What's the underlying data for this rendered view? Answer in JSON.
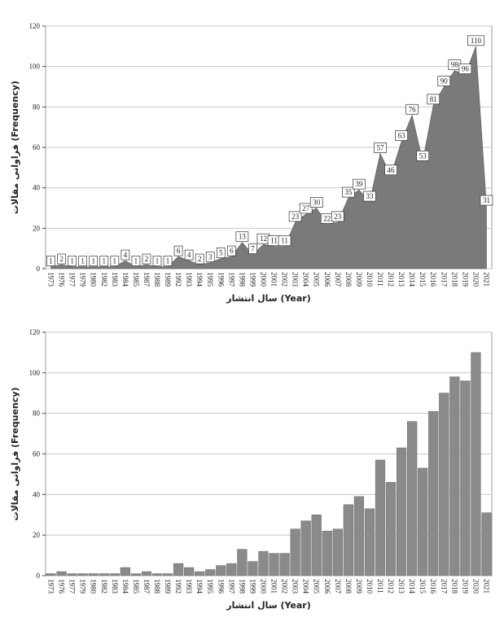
{
  "chart_data": [
    {
      "type": "area",
      "x_label": "سال انتشار (Year)",
      "y_label": "فراوانی مقالات (Frequency)",
      "categories": [
        "1973",
        "1976",
        "1977",
        "1979",
        "1980",
        "1982",
        "1983",
        "1984",
        "1985",
        "1987",
        "1988",
        "1989",
        "1992",
        "1993",
        "1994",
        "1995",
        "1996",
        "1997",
        "1998",
        "1999",
        "2000",
        "2001",
        "2002",
        "2003",
        "2004",
        "2005",
        "2006",
        "2007",
        "2008",
        "2009",
        "2010",
        "2011",
        "2012",
        "2013",
        "2014",
        "2015",
        "2016",
        "2017",
        "2018",
        "2019",
        "2020",
        "2021"
      ],
      "values": [
        1,
        2,
        1,
        1,
        1,
        1,
        1,
        4,
        1,
        2,
        1,
        1,
        6,
        4,
        2,
        3,
        5,
        6,
        13,
        7,
        12,
        11,
        11,
        23,
        27,
        30,
        22,
        23,
        35,
        39,
        33,
        57,
        46,
        63,
        76,
        53,
        81,
        90,
        98,
        96,
        110,
        31
      ],
      "color": "#7a7a7a",
      "ylim": [
        0,
        120
      ],
      "yticks": [
        0,
        20,
        40,
        60,
        80,
        100,
        120
      ],
      "grid": true,
      "data_labels": true
    },
    {
      "type": "bar",
      "x_label": "سال انتشار (Year)",
      "y_label": "فراوانی مقالات (Frequency)",
      "categories": [
        "1973",
        "1976",
        "1977",
        "1979",
        "1980",
        "1982",
        "1983",
        "1984",
        "1985",
        "1987",
        "1988",
        "1989",
        "1992",
        "1993",
        "1994",
        "1995",
        "1996",
        "1997",
        "1998",
        "1999",
        "2000",
        "2001",
        "2002",
        "2003",
        "2004",
        "2005",
        "2006",
        "2007",
        "2008",
        "2009",
        "2010",
        "2011",
        "2012",
        "2013",
        "2014",
        "2015",
        "2016",
        "2017",
        "2018",
        "2019",
        "2020",
        "2021"
      ],
      "values": [
        1,
        2,
        1,
        1,
        1,
        1,
        1,
        4,
        1,
        2,
        1,
        1,
        6,
        4,
        2,
        3,
        5,
        6,
        13,
        7,
        12,
        11,
        11,
        23,
        27,
        30,
        22,
        23,
        35,
        39,
        33,
        57,
        46,
        63,
        76,
        53,
        81,
        90,
        98,
        96,
        110,
        31
      ],
      "color": "#8a8a8a",
      "ylim": [
        0,
        120
      ],
      "yticks": [
        0,
        20,
        40,
        60,
        80,
        100,
        120
      ],
      "grid": true
    }
  ]
}
